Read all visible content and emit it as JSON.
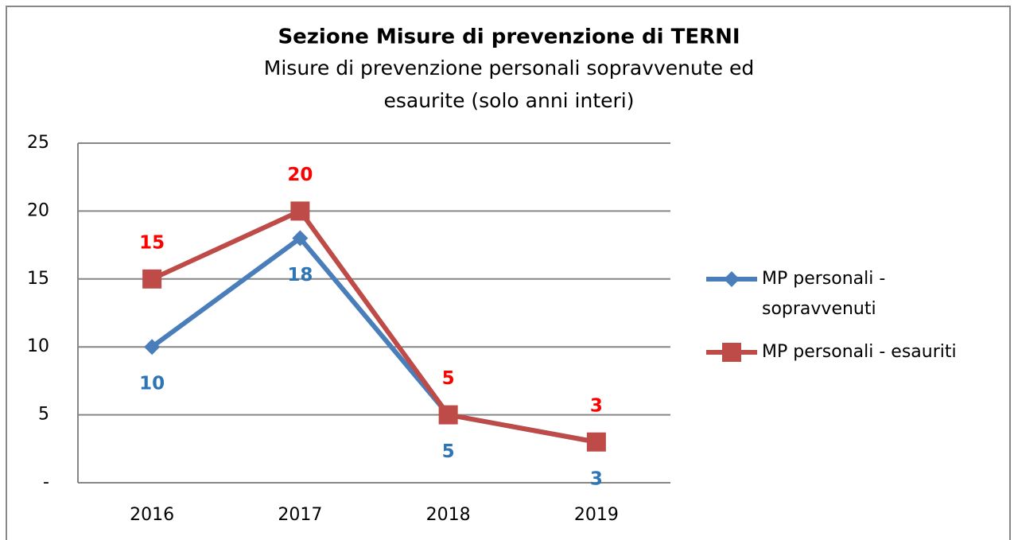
{
  "chart_data": {
    "type": "line",
    "title": "Sezione Misure di prevenzione di TERNI",
    "subtitle": [
      "Misure di prevenzione personali sopravvenute ed",
      "esaurite (solo anni interi)"
    ],
    "categories": [
      "2016",
      "2017",
      "2018",
      "2019"
    ],
    "series": [
      {
        "name": "MP personali - sopravvenuti",
        "color": "#4a7ebb",
        "label_color": "#2e75b6",
        "marker": "diamond",
        "label_position": "below",
        "values": [
          10,
          18,
          5,
          3
        ]
      },
      {
        "name": "MP personali - esauriti",
        "color": "#be4b48",
        "label_color": "#ff0000",
        "marker": "square",
        "label_position": "above",
        "values": [
          15,
          20,
          5,
          3
        ]
      }
    ],
    "ylim": [
      0,
      25
    ],
    "yticks": [
      {
        "value": 0,
        "label": "-"
      },
      5,
      10,
      15,
      20,
      25
    ],
    "grid": true,
    "legend": "right"
  }
}
